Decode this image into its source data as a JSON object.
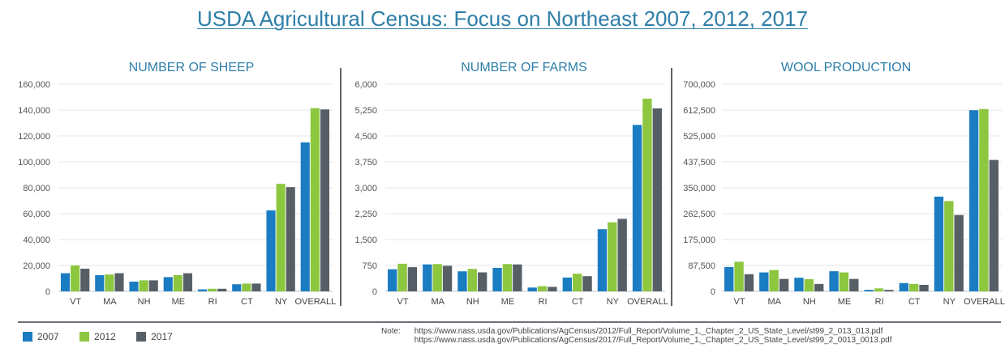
{
  "page": {
    "title": "USDA Agricultural Census: Focus on Northeast 2007, 2012, 2017"
  },
  "colors": {
    "2007": "#1a7cc1",
    "2012": "#8dc63f",
    "2017": "#575f66",
    "title": "#2e7ea8"
  },
  "legend": [
    {
      "label": "2007",
      "color": "#1a7cc1"
    },
    {
      "label": "2012",
      "color": "#8dc63f"
    },
    {
      "label": "2017",
      "color": "#575f66"
    }
  ],
  "note": {
    "label": "Note:",
    "links": [
      "https://www.nass.usda.gov/Publications/AgCensus/2012/Full_Report/Volume_1,_Chapter_2_US_State_Level/st99_2_013_013.pdf",
      "https://www.nass.usda.gov/Publications/AgCensus/2017/Full_Report/Volume_1,_Chapter_2_US_State_Level/st99_2_0013_0013.pdf"
    ]
  },
  "chart_data": [
    {
      "type": "bar",
      "title": "NUMBER OF SHEEP",
      "categories": [
        "VT",
        "MA",
        "NH",
        "ME",
        "RI",
        "CT",
        "NY",
        "OVERALL"
      ],
      "series": [
        {
          "name": "2007",
          "values": [
            14000,
            12500,
            7500,
            11000,
            1500,
            5500,
            62500,
            115000
          ]
        },
        {
          "name": "2012",
          "values": [
            20000,
            13000,
            8500,
            12500,
            2000,
            6000,
            83000,
            141500
          ]
        },
        {
          "name": "2017",
          "values": [
            17500,
            14000,
            8500,
            14000,
            2000,
            6000,
            80500,
            140500
          ]
        }
      ],
      "ylim": [
        0,
        160000
      ],
      "yticks": [
        0,
        20000,
        40000,
        60000,
        80000,
        100000,
        120000,
        140000,
        160000
      ],
      "ytick_labels": [
        "0",
        "20,000",
        "40,000",
        "60,000",
        "80,000",
        "100,000",
        "120,000",
        "140,000",
        "160,000"
      ],
      "grid": true
    },
    {
      "type": "bar",
      "title": "NUMBER OF FARMS",
      "categories": [
        "VT",
        "MA",
        "NH",
        "ME",
        "RI",
        "CT",
        "NY",
        "OVERALL"
      ],
      "series": [
        {
          "name": "2007",
          "values": [
            640,
            780,
            580,
            680,
            110,
            400,
            1800,
            4820
          ]
        },
        {
          "name": "2012",
          "values": [
            800,
            790,
            650,
            790,
            150,
            510,
            2000,
            5580
          ]
        },
        {
          "name": "2017",
          "values": [
            700,
            740,
            550,
            780,
            130,
            440,
            2100,
            5300
          ]
        }
      ],
      "ylim": [
        0,
        6000
      ],
      "yticks": [
        0,
        750,
        1500,
        2250,
        3000,
        3750,
        4500,
        5250,
        6000
      ],
      "ytick_labels": [
        "0",
        "750",
        "1,500",
        "2,250",
        "3,000",
        "3,750",
        "4,500",
        "5,250",
        "6,000"
      ],
      "grid": true
    },
    {
      "type": "bar",
      "title": "WOOL PRODUCTION",
      "categories": [
        "VT",
        "MA",
        "NH",
        "ME",
        "RI",
        "CT",
        "NY",
        "OVERALL"
      ],
      "series": [
        {
          "name": "2007",
          "values": [
            82000,
            64000,
            46000,
            68000,
            5000,
            28000,
            320000,
            612000
          ]
        },
        {
          "name": "2012",
          "values": [
            100000,
            72000,
            41000,
            64000,
            10000,
            25000,
            305000,
            616000
          ]
        },
        {
          "name": "2017",
          "values": [
            58000,
            42000,
            25000,
            42000,
            5000,
            22000,
            258000,
            444000
          ]
        }
      ],
      "ylim": [
        0,
        700000
      ],
      "yticks": [
        0,
        87500,
        175000,
        262500,
        350000,
        437500,
        525000,
        612500,
        700000
      ],
      "ytick_labels": [
        "0",
        "87,500",
        "175,000",
        "262,500",
        "350,000",
        "437,500",
        "525,000",
        "612,500",
        "700,000"
      ],
      "grid": true
    }
  ]
}
